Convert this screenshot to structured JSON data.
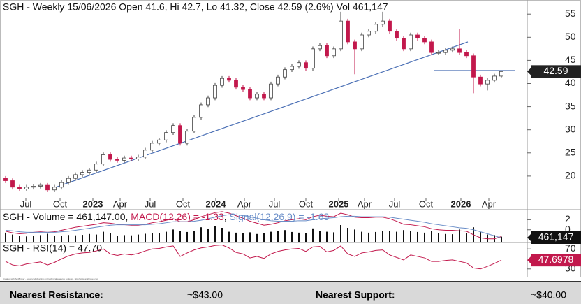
{
  "chart_data": [
    {
      "type": "candlestick",
      "title": "SGH - Weekly 15/06/2026 Open 41.6, Hi 42.7, Lo 41.32, Close 42.59 (2.6%) Vol 461,147",
      "up_color": "#ffffff",
      "down_color": "#c2184c",
      "ohlc": [
        [
          19.5,
          20.0,
          18.5,
          19.0
        ],
        [
          19.0,
          19.5,
          17.1,
          17.6
        ],
        [
          17.6,
          18.1,
          16.7,
          17.2
        ],
        [
          17.2,
          18.1,
          16.7,
          17.6
        ],
        [
          17.6,
          18.3,
          17.1,
          17.8
        ],
        [
          17.8,
          18.5,
          17.3,
          18.0
        ],
        [
          18.0,
          18.5,
          16.5,
          17.0
        ],
        [
          17.0,
          18.1,
          16.5,
          17.6
        ],
        [
          17.6,
          19.1,
          17.1,
          18.6
        ],
        [
          18.6,
          20.0,
          18.1,
          19.5
        ],
        [
          19.5,
          20.8,
          19.0,
          20.3
        ],
        [
          20.3,
          21.3,
          19.8,
          20.8
        ],
        [
          20.8,
          21.8,
          20.3,
          21.3
        ],
        [
          21.3,
          23.1,
          20.8,
          22.6
        ],
        [
          22.6,
          25.1,
          22.1,
          24.6
        ],
        [
          24.6,
          25.1,
          23.1,
          23.6
        ],
        [
          23.6,
          24.1,
          22.9,
          23.4
        ],
        [
          23.4,
          24.4,
          22.9,
          23.9
        ],
        [
          23.9,
          24.4,
          23.2,
          23.7
        ],
        [
          23.7,
          24.6,
          23.2,
          24.1
        ],
        [
          24.1,
          26.1,
          23.6,
          25.6
        ],
        [
          25.6,
          27.6,
          25.1,
          27.1
        ],
        [
          27.1,
          28.3,
          26.6,
          27.8
        ],
        [
          27.8,
          29.9,
          27.3,
          29.4
        ],
        [
          29.4,
          31.4,
          28.9,
          30.9
        ],
        [
          30.9,
          31.4,
          26.6,
          27.1
        ],
        [
          27.1,
          30.2,
          26.6,
          29.7
        ],
        [
          29.7,
          33.2,
          29.2,
          32.7
        ],
        [
          32.7,
          35.9,
          32.2,
          35.4
        ],
        [
          35.4,
          37.4,
          34.9,
          36.9
        ],
        [
          36.9,
          40.1,
          36.4,
          39.6
        ],
        [
          39.6,
          41.6,
          39.1,
          41.1
        ],
        [
          41.1,
          41.6,
          40.2,
          40.7
        ],
        [
          40.7,
          41.2,
          38.7,
          39.2
        ],
        [
          39.2,
          39.7,
          38.2,
          38.7
        ],
        [
          38.7,
          39.2,
          36.4,
          36.9
        ],
        [
          36.9,
          38.2,
          36.4,
          37.7
        ],
        [
          37.7,
          38.2,
          36.4,
          36.9
        ],
        [
          36.9,
          40.4,
          36.4,
          39.9
        ],
        [
          39.9,
          41.9,
          39.4,
          41.4
        ],
        [
          41.4,
          43.5,
          40.9,
          43.0
        ],
        [
          43.0,
          44.2,
          42.5,
          43.7
        ],
        [
          43.7,
          45.0,
          43.2,
          44.5
        ],
        [
          44.5,
          45.0,
          42.8,
          43.3
        ],
        [
          43.3,
          48.0,
          42.8,
          47.5
        ],
        [
          47.5,
          48.7,
          47.0,
          48.2
        ],
        [
          48.2,
          48.7,
          45.5,
          46.0
        ],
        [
          46.0,
          48.0,
          45.5,
          47.5
        ],
        [
          47.5,
          55.5,
          47.0,
          53.5
        ],
        [
          53.5,
          54.0,
          48.5,
          49.0
        ],
        [
          49.0,
          49.5,
          42.0,
          47.5
        ],
        [
          47.5,
          51.0,
          47.0,
          50.5
        ],
        [
          50.5,
          51.8,
          50.0,
          51.3
        ],
        [
          51.3,
          53.3,
          50.8,
          52.8
        ],
        [
          52.8,
          55.5,
          52.3,
          53.5
        ],
        [
          53.5,
          54.0,
          50.8,
          51.3
        ],
        [
          51.3,
          51.8,
          49.3,
          49.8
        ],
        [
          49.8,
          50.3,
          47.0,
          47.5
        ],
        [
          47.5,
          51.0,
          47.0,
          50.5
        ],
        [
          50.5,
          51.0,
          49.3,
          49.8
        ],
        [
          49.8,
          50.3,
          48.5,
          49.0
        ],
        [
          49.0,
          49.5,
          46.2,
          46.7
        ],
        [
          46.7,
          47.2,
          46.2,
          46.7
        ],
        [
          46.7,
          47.7,
          46.2,
          47.2
        ],
        [
          47.2,
          48.0,
          46.7,
          47.5
        ],
        [
          47.5,
          51.7,
          46.2,
          46.7
        ],
        [
          46.7,
          47.2,
          45.5,
          46.0
        ],
        [
          46.0,
          46.5,
          37.9,
          41.4
        ],
        [
          41.4,
          41.9,
          39.4,
          39.9
        ],
        [
          39.9,
          41.2,
          38.5,
          40.7
        ],
        [
          40.7,
          42.1,
          40.2,
          41.6
        ],
        [
          41.6,
          42.7,
          41.32,
          42.59
        ]
      ],
      "xlim": [
        -0.8,
        74.7
      ],
      "xticks": [
        {
          "value": 2.9,
          "label": "Jul"
        },
        {
          "value": 7.8,
          "label": "Oct"
        },
        {
          "value": 12.5,
          "label": "2023"
        },
        {
          "value": 16.4,
          "label": "Apr"
        },
        {
          "value": 20.7,
          "label": "Jul"
        },
        {
          "value": 25.4,
          "label": "Oct"
        },
        {
          "value": 30.1,
          "label": "2024"
        },
        {
          "value": 34.2,
          "label": "Apr"
        },
        {
          "value": 38.5,
          "label": "Jul"
        },
        {
          "value": 43.0,
          "label": "Oct"
        },
        {
          "value": 47.7,
          "label": "2025"
        },
        {
          "value": 51.4,
          "label": "Apr"
        },
        {
          "value": 55.7,
          "label": "Jul"
        },
        {
          "value": 60.2,
          "label": "Oct"
        },
        {
          "value": 65.2,
          "label": "2026"
        },
        {
          "value": 69.2,
          "label": "Apr"
        }
      ],
      "ylim": [
        15.3,
        57.6
      ],
      "yticks": [
        20,
        25,
        30,
        35,
        40,
        45,
        50,
        55
      ],
      "trendlines": [
        {
          "x": [
            7.2,
            66.2
          ],
          "y": [
            17.6,
            49.0
          ],
          "color": "#4a6fb5"
        },
        {
          "x": [
            61.4,
            73.0
          ],
          "y": [
            42.8,
            42.8
          ],
          "color": "#4a6fb5"
        }
      ]
    },
    {
      "type": "combo",
      "title_parts": [
        "SGH - Volume = 461,147.00, ",
        "MACD(12,26) = -1.33",
        ", ",
        "Signal(12,26,9) = -1.63",
        " = -1.63"
      ],
      "series": [
        {
          "color": "#111111",
          "last_value_label": "461,147",
          "values": [
            820000,
            650000,
            540000,
            480000,
            510000,
            600000,
            720000,
            560000,
            530000,
            610000,
            580000,
            620000,
            700000,
            650000,
            900000,
            760000,
            540000,
            600000,
            580000,
            650000,
            720000,
            800000,
            760000,
            900000,
            1100000,
            950000,
            880000,
            1000000,
            1300000,
            1150000,
            1400000,
            1250000,
            900000,
            820000,
            780000,
            850000,
            700000,
            760000,
            900000,
            980000,
            1050000,
            880000,
            820000,
            760000,
            1200000,
            1000000,
            900000,
            850000,
            1500000,
            1250000,
            1100000,
            900000,
            820000,
            880000,
            1000000,
            950000,
            900000,
            1050000,
            1000000,
            880000,
            820000,
            950000,
            760000,
            700000,
            680000,
            1100000,
            780000,
            1300000,
            900000,
            650000,
            600000,
            461147
          ]
        },
        {
          "color": "#c2184c",
          "values": [
            -0.3,
            -0.6,
            -0.8,
            -0.7,
            -0.5,
            -0.4,
            -0.5,
            -0.4,
            -0.1,
            0.2,
            0.5,
            0.7,
            0.9,
            1.1,
            1.4,
            1.3,
            1.1,
            1.0,
            0.9,
            0.9,
            1.1,
            1.4,
            1.6,
            1.9,
            2.2,
            1.6,
            1.6,
            2.0,
            2.6,
            3.0,
            3.4,
            3.6,
            3.3,
            2.8,
            2.3,
            1.7,
            1.3,
            0.9,
            1.1,
            1.4,
            1.8,
            2.0,
            2.2,
            2.0,
            2.6,
            2.9,
            2.7,
            2.6,
            3.3,
            3.0,
            2.5,
            2.4,
            2.4,
            2.5,
            2.5,
            2.2,
            1.7,
            1.1,
            1.0,
            0.8,
            0.6,
            0.2,
            0.0,
            -0.1,
            -0.1,
            -0.2,
            -0.3,
            -1.0,
            -1.6,
            -1.8,
            -1.8,
            -1.33
          ]
        },
        {
          "color": "#6a8ec8",
          "values": [
            -0.1,
            -0.2,
            -0.4,
            -0.5,
            -0.5,
            -0.5,
            -0.5,
            -0.5,
            -0.4,
            -0.3,
            -0.1,
            0.1,
            0.3,
            0.5,
            0.7,
            0.9,
            1.0,
            1.0,
            1.0,
            1.0,
            1.0,
            1.1,
            1.2,
            1.4,
            1.6,
            1.6,
            1.6,
            1.7,
            1.9,
            2.2,
            2.5,
            2.8,
            3.0,
            3.0,
            2.8,
            2.6,
            2.3,
            2.0,
            1.8,
            1.7,
            1.7,
            1.7,
            1.8,
            1.8,
            2.0,
            2.2,
            2.3,
            2.4,
            2.6,
            2.7,
            2.7,
            2.6,
            2.6,
            2.6,
            2.6,
            2.5,
            2.3,
            2.1,
            1.9,
            1.7,
            1.5,
            1.2,
            1.0,
            0.8,
            0.6,
            0.4,
            0.3,
            0.0,
            -0.4,
            -0.8,
            -1.2,
            -1.63
          ]
        }
      ],
      "ylim": [
        -2.4,
        4
      ],
      "yticks": [
        0,
        2
      ]
    },
    {
      "type": "line",
      "title": "SGH - RSI(14) = 47.70",
      "series": [
        {
          "color": "#c2184c",
          "values": [
            45,
            38,
            36,
            40,
            42,
            44,
            38,
            43,
            50,
            56,
            60,
            62,
            63,
            66,
            70,
            60,
            57,
            60,
            58,
            61,
            66,
            70,
            71,
            74,
            76,
            55,
            62,
            68,
            72,
            74,
            77,
            78,
            72,
            63,
            60,
            52,
            55,
            51,
            60,
            65,
            68,
            70,
            71,
            65,
            74,
            75,
            64,
            67,
            76,
            60,
            55,
            62,
            64,
            67,
            68,
            58,
            53,
            48,
            58,
            55,
            52,
            45,
            45,
            47,
            48,
            45,
            42,
            32,
            30,
            35,
            41,
            47.6978
          ]
        }
      ],
      "ylim": [
        15.7,
        82.9
      ],
      "yticks": [
        30,
        70
      ]
    }
  ],
  "caption": "Created with AmiBroker - advanced charting and technical analysis software. http://www.amibroker.com",
  "footer": {
    "resistance_label": "Nearest Resistance:",
    "resistance_value": "~$43.00",
    "support_label": "Nearest Support:",
    "support_value": "~$40.00"
  }
}
